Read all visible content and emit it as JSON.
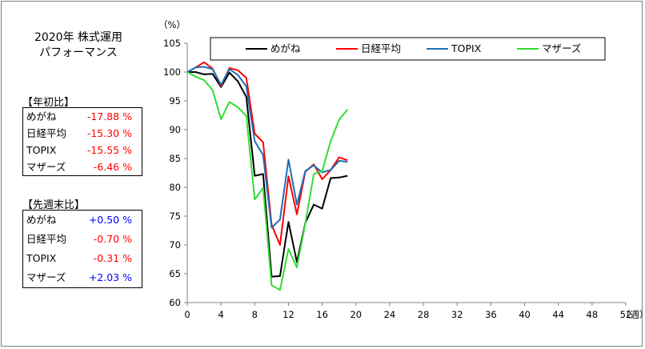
{
  "title": {
    "line1": "2020年 株式運用",
    "line2": "パフォーマンス"
  },
  "ytd": {
    "label": "【年初比】",
    "rows": [
      {
        "name": "めがね",
        "value": "-17.88 %",
        "color": "#ff0000"
      },
      {
        "name": "日経平均",
        "value": "-15.30 %",
        "color": "#ff0000"
      },
      {
        "name": "TOPIX",
        "value": "-15.55 %",
        "color": "#ff0000"
      },
      {
        "name": "マザーズ",
        "value": "-6.46 %",
        "color": "#ff0000"
      }
    ]
  },
  "weekly": {
    "label": "【先週末比】",
    "rows": [
      {
        "name": "めがね",
        "value": "+0.50 %",
        "color": "#0000ff"
      },
      {
        "name": "日経平均",
        "value": "-0.70 %",
        "color": "#ff0000"
      },
      {
        "name": "TOPIX",
        "value": "-0.31 %",
        "color": "#ff0000"
      },
      {
        "name": "マザーズ",
        "value": "+2.03 %",
        "color": "#0000ff"
      }
    ]
  },
  "chart_data": {
    "type": "line",
    "ylabel": "（%）",
    "xlabel": "（週）",
    "xlim": [
      0,
      52
    ],
    "ylim": [
      60,
      105
    ],
    "x_ticks": [
      0,
      4,
      8,
      12,
      16,
      20,
      24,
      28,
      32,
      36,
      40,
      44,
      48,
      52
    ],
    "y_ticks": [
      60,
      65,
      70,
      75,
      80,
      85,
      90,
      95,
      100,
      105
    ],
    "grid": false,
    "legend_position": "top",
    "x": [
      0,
      1,
      2,
      3,
      4,
      5,
      6,
      7,
      8,
      9,
      10,
      11,
      12,
      13,
      14,
      15,
      16,
      17,
      18,
      19
    ],
    "series": [
      {
        "name": "めがね",
        "color": "#000000",
        "values": [
          100,
          100,
          99.6,
          99.7,
          97.4,
          99.9,
          98.4,
          95.7,
          82,
          82.3,
          64.5,
          64.6,
          74,
          67,
          73.8,
          77,
          76.3,
          81.6,
          81.7,
          82
        ]
      },
      {
        "name": "日経平均",
        "color": "#ff0000",
        "values": [
          100,
          100.8,
          101.7,
          100.6,
          97.6,
          100.7,
          100.3,
          99,
          89.3,
          87.8,
          73.5,
          70,
          81.9,
          75.3,
          82.7,
          84,
          81.4,
          83,
          85.2,
          84.7
        ]
      },
      {
        "name": "TOPIX",
        "color": "#1f6fb5",
        "values": [
          100,
          100.8,
          100.9,
          100.5,
          97.8,
          100.5,
          99.5,
          97.5,
          88,
          85.6,
          73,
          74.4,
          84.8,
          77,
          82.8,
          83.8,
          82.6,
          83,
          84.6,
          84.4
        ]
      },
      {
        "name": "マザーズ",
        "color": "#33dd33",
        "values": [
          100,
          99.2,
          98.6,
          96.9,
          91.8,
          94.8,
          93.9,
          92.4,
          77.9,
          79.9,
          63,
          62.2,
          69.3,
          66.1,
          73.7,
          82.3,
          82.8,
          88,
          91.7,
          93.5
        ]
      }
    ]
  }
}
